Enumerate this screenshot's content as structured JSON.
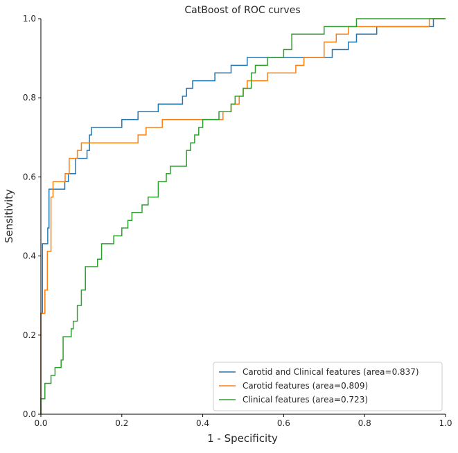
{
  "chart_data": {
    "type": "line",
    "title": "CatBoost of ROC curves",
    "xlabel": "1 - Specificity",
    "ylabel": "Sensitivity",
    "xlim": [
      0,
      1
    ],
    "ylim": [
      0,
      1
    ],
    "xticks": [
      0.0,
      0.2,
      0.4,
      0.6,
      0.8,
      1.0
    ],
    "yticks": [
      0.0,
      0.2,
      0.4,
      0.6,
      0.8,
      1.0
    ],
    "xtick_labels": [
      "0.0",
      "0.2",
      "0.4",
      "0.6",
      "0.8",
      "1.0"
    ],
    "ytick_labels": [
      "0.0",
      "0.2",
      "0.4",
      "0.6",
      "0.8",
      "1.0"
    ],
    "grid": false,
    "legend_position": "bottom-right",
    "series": [
      {
        "name": "Carotid and Clinical features (area=0.837)",
        "color": "#1f77b4",
        "x": [
          0,
          0,
          0.004,
          0.004,
          0.017,
          0.017,
          0.02,
          0.02,
          0.059,
          0.059,
          0.068,
          0.068,
          0.086,
          0.086,
          0.114,
          0.114,
          0.12,
          0.12,
          0.125,
          0.125,
          0.2,
          0.2,
          0.24,
          0.24,
          0.29,
          0.29,
          0.35,
          0.35,
          0.36,
          0.36,
          0.375,
          0.375,
          0.43,
          0.43,
          0.47,
          0.47,
          0.51,
          0.51,
          0.57,
          0.57,
          0.61,
          0.61,
          0.72,
          0.72,
          0.76,
          0.76,
          0.78,
          0.78,
          0.8,
          0.8,
          0.83,
          0.83,
          0.97,
          0.97,
          1.0
        ],
        "y": [
          0,
          0.255,
          0.255,
          0.431,
          0.431,
          0.471,
          0.471,
          0.569,
          0.569,
          0.588,
          0.588,
          0.608,
          0.608,
          0.647,
          0.647,
          0.667,
          0.667,
          0.706,
          0.706,
          0.725,
          0.725,
          0.745,
          0.745,
          0.765,
          0.765,
          0.784,
          0.784,
          0.804,
          0.804,
          0.824,
          0.824,
          0.843,
          0.843,
          0.863,
          0.863,
          0.882,
          0.882,
          0.902,
          0.902,
          0.902,
          0.902,
          0.902,
          0.902,
          0.922,
          0.922,
          0.941,
          0.941,
          0.961,
          0.961,
          0.961,
          0.961,
          0.98,
          0.98,
          1.0,
          1.0
        ]
      },
      {
        "name": "Carotid features (area=0.809)",
        "color": "#ff7f0e",
        "x": [
          0,
          0,
          0.01,
          0.01,
          0.016,
          0.016,
          0.025,
          0.025,
          0.03,
          0.03,
          0.06,
          0.06,
          0.07,
          0.07,
          0.09,
          0.09,
          0.1,
          0.1,
          0.24,
          0.24,
          0.26,
          0.26,
          0.3,
          0.3,
          0.45,
          0.45,
          0.47,
          0.47,
          0.49,
          0.49,
          0.5,
          0.5,
          0.51,
          0.51,
          0.53,
          0.53,
          0.56,
          0.56,
          0.63,
          0.63,
          0.65,
          0.65,
          0.7,
          0.7,
          0.73,
          0.73,
          0.76,
          0.76,
          0.96,
          0.96,
          1.0
        ],
        "y": [
          0,
          0.255,
          0.255,
          0.314,
          0.314,
          0.412,
          0.412,
          0.549,
          0.549,
          0.588,
          0.588,
          0.608,
          0.608,
          0.647,
          0.647,
          0.667,
          0.667,
          0.686,
          0.686,
          0.706,
          0.706,
          0.725,
          0.725,
          0.745,
          0.745,
          0.765,
          0.765,
          0.784,
          0.784,
          0.804,
          0.804,
          0.824,
          0.824,
          0.843,
          0.843,
          0.843,
          0.843,
          0.863,
          0.863,
          0.882,
          0.882,
          0.902,
          0.902,
          0.941,
          0.941,
          0.961,
          0.961,
          0.98,
          0.98,
          1.0,
          1.0
        ]
      },
      {
        "name": "Clinical features (area=0.723)",
        "color": "#2ca02c",
        "x": [
          0,
          0,
          0.01,
          0.01,
          0.025,
          0.025,
          0.035,
          0.035,
          0.05,
          0.05,
          0.055,
          0.055,
          0.075,
          0.075,
          0.08,
          0.08,
          0.09,
          0.09,
          0.1,
          0.1,
          0.11,
          0.11,
          0.14,
          0.14,
          0.15,
          0.15,
          0.18,
          0.18,
          0.2,
          0.2,
          0.215,
          0.215,
          0.225,
          0.225,
          0.25,
          0.25,
          0.265,
          0.265,
          0.29,
          0.29,
          0.31,
          0.31,
          0.32,
          0.32,
          0.36,
          0.36,
          0.37,
          0.37,
          0.38,
          0.38,
          0.39,
          0.39,
          0.4,
          0.4,
          0.42,
          0.42,
          0.44,
          0.44,
          0.47,
          0.47,
          0.48,
          0.48,
          0.5,
          0.5,
          0.52,
          0.52,
          0.53,
          0.53,
          0.56,
          0.56,
          0.6,
          0.6,
          0.62,
          0.62,
          0.65,
          0.65,
          0.7,
          0.7,
          0.72,
          0.72,
          0.78,
          0.78,
          1.0
        ],
        "y": [
          0,
          0.039,
          0.039,
          0.078,
          0.078,
          0.098,
          0.098,
          0.118,
          0.118,
          0.137,
          0.137,
          0.196,
          0.196,
          0.216,
          0.216,
          0.235,
          0.235,
          0.275,
          0.275,
          0.314,
          0.314,
          0.373,
          0.373,
          0.392,
          0.392,
          0.431,
          0.431,
          0.451,
          0.451,
          0.471,
          0.471,
          0.49,
          0.49,
          0.51,
          0.51,
          0.529,
          0.529,
          0.549,
          0.549,
          0.588,
          0.588,
          0.608,
          0.608,
          0.627,
          0.627,
          0.667,
          0.667,
          0.686,
          0.686,
          0.706,
          0.706,
          0.725,
          0.725,
          0.745,
          0.745,
          0.745,
          0.745,
          0.765,
          0.765,
          0.784,
          0.784,
          0.804,
          0.804,
          0.824,
          0.824,
          0.863,
          0.863,
          0.882,
          0.882,
          0.902,
          0.902,
          0.922,
          0.922,
          0.961,
          0.961,
          0.961,
          0.961,
          0.98,
          0.98,
          0.98,
          0.98,
          1.0,
          1.0
        ]
      }
    ]
  }
}
